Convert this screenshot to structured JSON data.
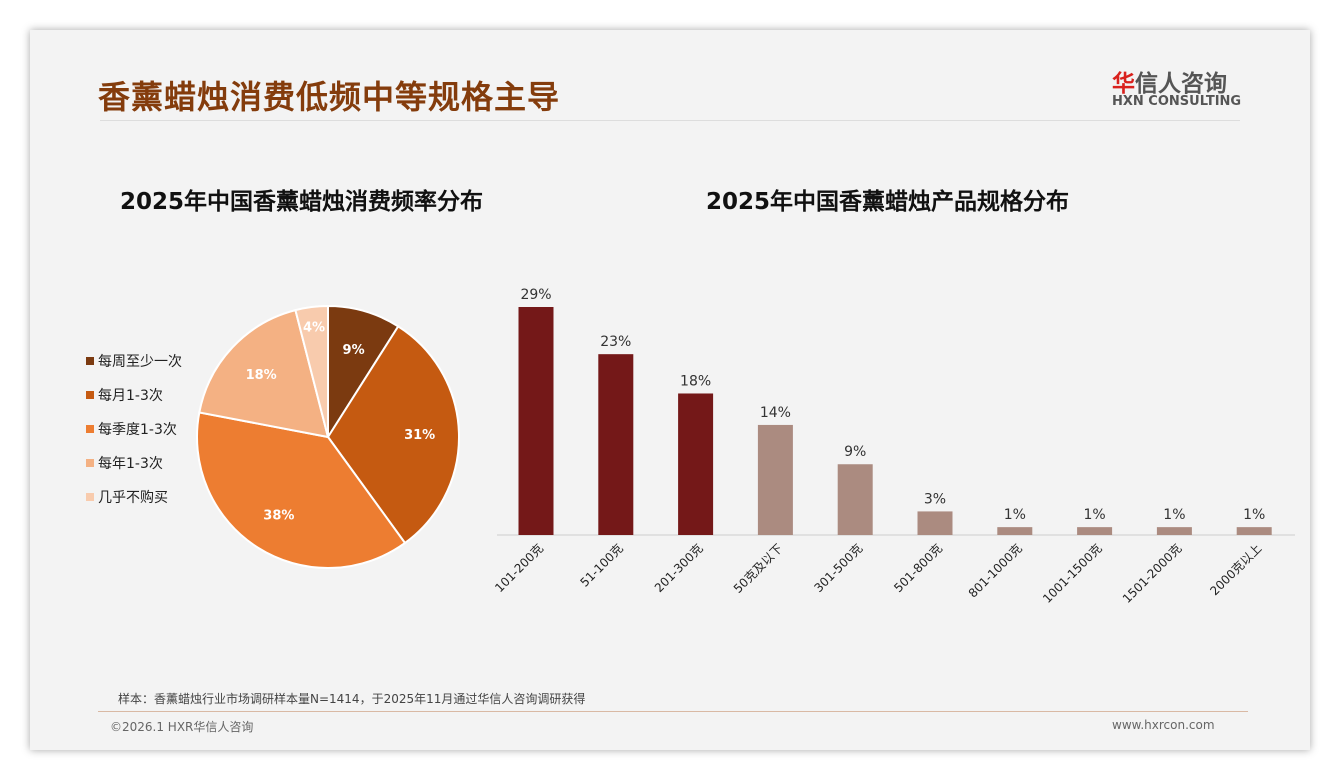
{
  "header": {
    "title": "香薰蜡烛消费低频中等规格主导",
    "logo_cn_red": "华",
    "logo_cn": "信人咨询",
    "logo_en": "HXN CONSULTING"
  },
  "footer": {
    "note": "样本：香薰蜡烛行业市场调研样本量N=1414，于2025年11月通过华信人咨询调研获得",
    "copyright": "©2026.1 HXR华信人咨询",
    "url": "www.hxrcon.com"
  },
  "chart_data": [
    {
      "type": "pie",
      "title": "2025年中国香薰蜡烛消费频率分布",
      "labels": [
        "每周至少一次",
        "每月1-3次",
        "每季度1-3次",
        "每年1-3次",
        "几乎不购买"
      ],
      "values": [
        9,
        31,
        38,
        18,
        4
      ],
      "data_labels": [
        "9%",
        "31%",
        "38%",
        "18%",
        "4%"
      ],
      "colors": [
        "#7b3a10",
        "#c55a11",
        "#ed7d31",
        "#f4b183",
        "#f8cbad"
      ],
      "legend": "left"
    },
    {
      "type": "bar",
      "title": "2025年中国香薰蜡烛产品规格分布",
      "categories": [
        "101-200克",
        "51-100克",
        "201-300克",
        "50克及以下",
        "301-500克",
        "501-800克",
        "801-1000克",
        "1001-1500克",
        "1501-2000克",
        "2000克以上"
      ],
      "values": [
        29,
        23,
        18,
        14,
        9,
        3,
        1,
        1,
        1,
        1
      ],
      "data_labels": [
        "29%",
        "23%",
        "18%",
        "14%",
        "9%",
        "3%",
        "1%",
        "1%",
        "1%",
        "1%"
      ],
      "highlight_count": 3,
      "colors": {
        "highlight": "#741818",
        "normal": "#ab8b80"
      },
      "ylim": [
        0,
        30
      ]
    }
  ]
}
